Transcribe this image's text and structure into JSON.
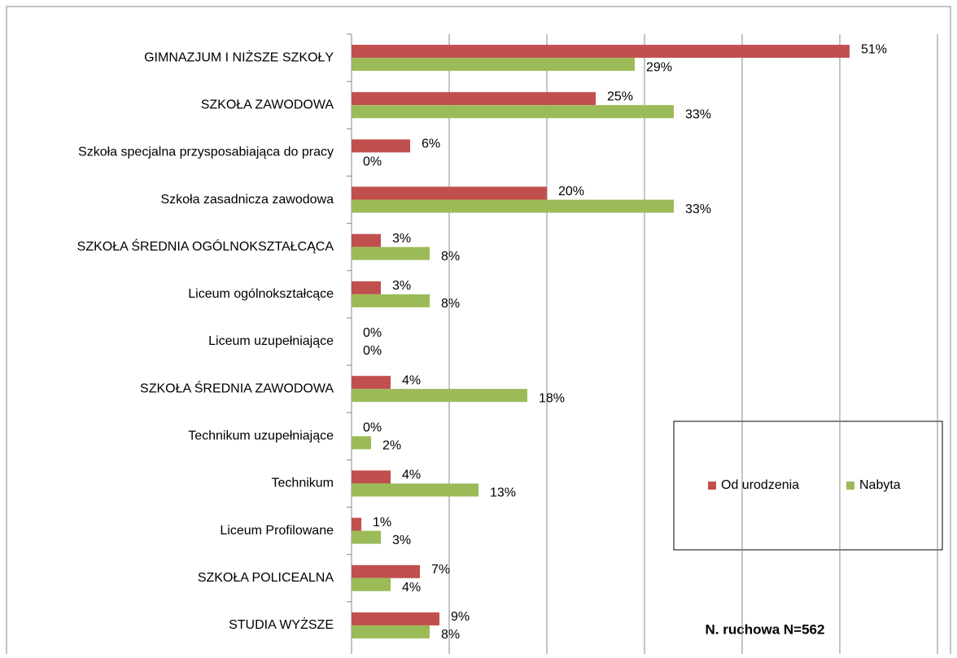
{
  "chart_data": {
    "type": "hbar",
    "categories": [
      "GIMNAZJUM I NIŻSZE SZKOŁY",
      "SZKOŁA ZAWODOWA",
      "Szkoła specjalna przysposabiająca do pracy",
      "Szkoła zasadnicza zawodowa",
      "SZKOŁA ŚREDNIA OGÓLNOKSZTAŁCĄCA",
      "Liceum ogólnokształcące",
      "Liceum uzupełniające",
      "SZKOŁA ŚREDNIA ZAWODOWA",
      "Technikum uzupełniające",
      "Technikum",
      "Liceum Profilowane",
      "SZKOŁA POLICEALNA",
      "STUDIA WYŻSZE"
    ],
    "series": [
      {
        "name": "Od urodzenia",
        "color": "#c0504d",
        "values": [
          51,
          25,
          6,
          20,
          3,
          3,
          0,
          4,
          0,
          4,
          1,
          7,
          9
        ],
        "value_labels": [
          "51%",
          "25%",
          "6%",
          "20%",
          "3%",
          "3%",
          "0%",
          "4%",
          "0%",
          "4%",
          "1%",
          "7%",
          "9%"
        ]
      },
      {
        "name": "Nabyta",
        "color": "#9bbb59",
        "values": [
          29,
          33,
          0,
          33,
          8,
          8,
          0,
          18,
          2,
          13,
          3,
          4,
          8
        ],
        "value_labels": [
          "29%",
          "33%",
          "0%",
          "33%",
          "8%",
          "8%",
          "0%",
          "18%",
          "2%",
          "13%",
          "3%",
          "4%",
          "8%"
        ]
      }
    ],
    "xlim": [
      0,
      60
    ],
    "xticks": [
      0,
      10,
      20,
      30,
      40,
      50,
      60
    ],
    "grid": true,
    "annotation": "N. ruchowa N=562"
  }
}
